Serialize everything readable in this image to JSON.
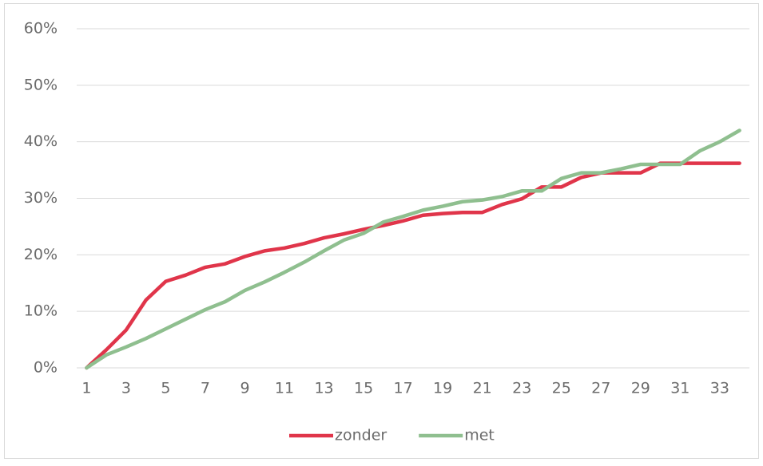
{
  "chart_data": {
    "type": "line",
    "categories": [
      "1",
      null,
      "3",
      null,
      "5",
      null,
      "7",
      null,
      "9",
      null,
      "11",
      null,
      "13",
      null,
      "15",
      null,
      "17",
      null,
      "19",
      null,
      "21",
      null,
      "23",
      null,
      "25",
      null,
      "27",
      null,
      "29",
      null,
      "31",
      null,
      "33",
      null
    ],
    "series": [
      {
        "name": "zonder",
        "color": "#e0354a",
        "values": [
          0,
          3.2,
          6.7,
          12,
          15.3,
          16.4,
          17.8,
          18.4,
          19.7,
          20.7,
          21.2,
          22,
          23,
          23.7,
          24.5,
          25.2,
          26,
          27,
          27.3,
          27.5,
          27.5,
          28.9,
          29.9,
          32,
          32,
          33.7,
          34.5,
          34.5,
          34.5,
          36.2,
          36.2,
          36.2,
          36.2,
          36.2
        ]
      },
      {
        "name": "met",
        "color": "#8fbf8f",
        "values": [
          0,
          2.3,
          3.7,
          5.2,
          6.9,
          8.6,
          10.3,
          11.7,
          13.7,
          15.2,
          16.9,
          18.7,
          20.7,
          22.6,
          23.8,
          25.8,
          26.8,
          27.9,
          28.6,
          29.4,
          29.7,
          30.3,
          31.3,
          31.3,
          33.5,
          34.5,
          34.5,
          35.2,
          36,
          36,
          36,
          38.4,
          40,
          42
        ]
      }
    ],
    "ylim": [
      0,
      60
    ],
    "yticks": [
      {
        "value": 0,
        "label": "0%"
      },
      {
        "value": 10,
        "label": "10%"
      },
      {
        "value": 20,
        "label": "20%"
      },
      {
        "value": 30,
        "label": "30%"
      },
      {
        "value": 40,
        "label": "40%"
      },
      {
        "value": 50,
        "label": "50%"
      },
      {
        "value": 60,
        "label": "60%"
      }
    ],
    "grid": true,
    "legend": "bottom"
  }
}
